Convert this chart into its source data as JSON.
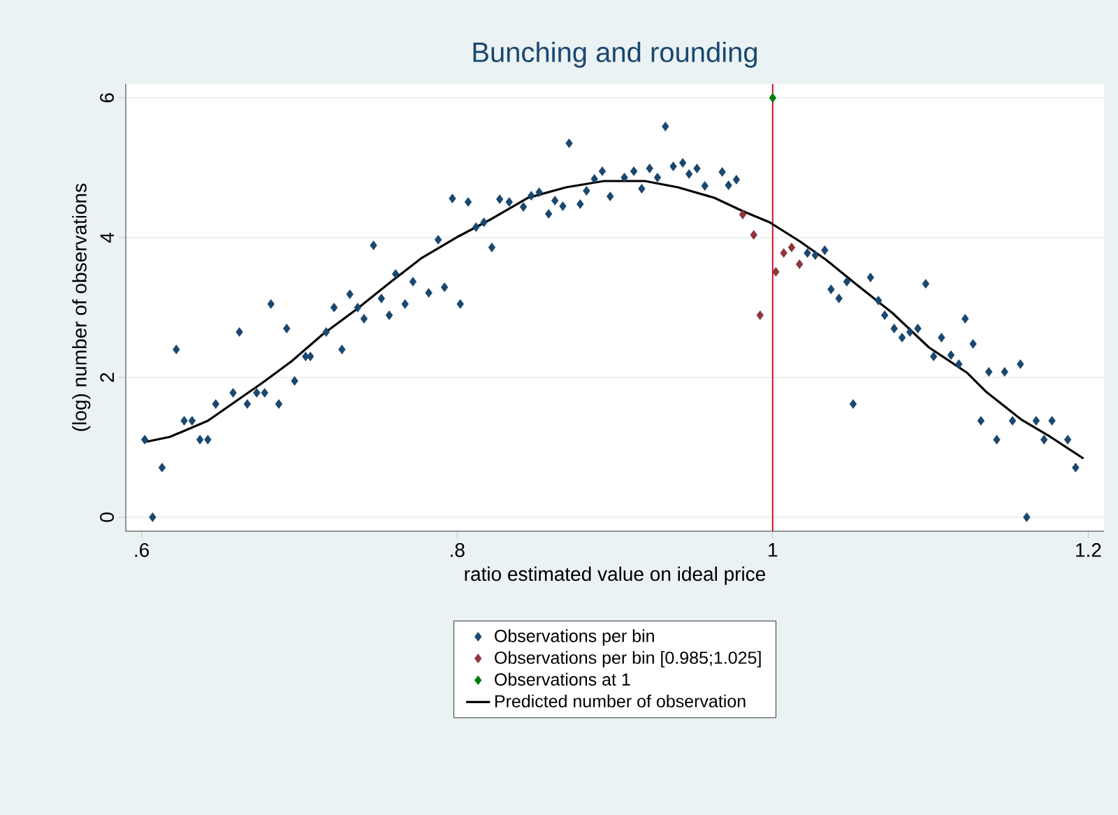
{
  "chart_data": {
    "type": "scatter",
    "title": "Bunching and rounding",
    "xlabel": "ratio estimated value on ideal price",
    "ylabel": "(log) number of observations",
    "xlim": [
      0.59,
      1.21
    ],
    "ylim": [
      -0.2,
      6.2
    ],
    "xticks": [
      {
        "value": 0.6,
        "label": ".6"
      },
      {
        "value": 0.8,
        "label": ".8"
      },
      {
        "value": 1,
        "label": "1"
      },
      {
        "value": 1.2,
        "label": "1.2"
      }
    ],
    "yticks": [
      0,
      2,
      4,
      6
    ],
    "grid": "y",
    "legend": "bottom",
    "ref_lines": [
      {
        "axis": "x",
        "value": 1,
        "color": "#c8102e"
      }
    ],
    "series": [
      {
        "name": "Observations per bin",
        "marker": "diamond",
        "color": "#1a476f",
        "x": [
          0.602,
          0.607,
          0.613,
          0.622,
          0.627,
          0.632,
          0.637,
          0.642,
          0.647,
          0.658,
          0.662,
          0.667,
          0.673,
          0.678,
          0.682,
          0.687,
          0.692,
          0.697,
          0.704,
          0.707,
          0.717,
          0.722,
          0.727,
          0.732,
          0.737,
          0.741,
          0.747,
          0.752,
          0.757,
          0.761,
          0.767,
          0.772,
          0.782,
          0.788,
          0.792,
          0.797,
          0.802,
          0.807,
          0.812,
          0.817,
          0.822,
          0.827,
          0.833,
          0.842,
          0.847,
          0.852,
          0.858,
          0.862,
          0.867,
          0.871,
          0.878,
          0.882,
          0.887,
          0.892,
          0.897,
          0.906,
          0.912,
          0.917,
          0.922,
          0.927,
          0.932,
          0.937,
          0.943,
          0.947,
          0.952,
          0.957,
          0.968,
          0.972,
          0.977,
          1.022,
          1.027,
          1.033,
          1.037,
          1.042,
          1.047,
          1.051,
          1.062,
          1.067,
          1.071,
          1.077,
          1.082,
          1.087,
          1.092,
          1.097,
          1.102,
          1.107,
          1.113,
          1.118,
          1.122,
          1.127,
          1.132,
          1.137,
          1.142,
          1.147,
          1.152,
          1.157,
          1.161,
          1.167,
          1.172,
          1.177,
          1.187,
          1.192
        ],
        "values": [
          1.11,
          0.0,
          0.71,
          2.4,
          1.38,
          1.38,
          1.11,
          1.11,
          1.62,
          1.78,
          2.65,
          1.62,
          1.78,
          1.78,
          3.05,
          1.62,
          2.7,
          1.95,
          2.3,
          2.3,
          2.65,
          3.0,
          2.4,
          3.19,
          3.0,
          2.84,
          3.89,
          3.13,
          2.89,
          3.48,
          3.05,
          3.37,
          3.21,
          3.97,
          3.29,
          4.56,
          3.05,
          4.51,
          4.15,
          4.22,
          3.86,
          4.55,
          4.51,
          4.44,
          4.6,
          4.65,
          4.34,
          4.53,
          4.45,
          5.35,
          4.48,
          4.67,
          4.84,
          4.95,
          4.59,
          4.86,
          4.95,
          4.7,
          4.99,
          4.86,
          5.59,
          5.02,
          5.07,
          4.91,
          4.99,
          4.74,
          4.94,
          4.75,
          4.83,
          3.78,
          3.75,
          3.82,
          3.26,
          3.13,
          3.37,
          1.62,
          3.43,
          3.1,
          2.89,
          2.7,
          2.57,
          2.65,
          2.7,
          3.34,
          2.3,
          2.57,
          2.32,
          2.19,
          2.84,
          2.48,
          1.38,
          2.08,
          1.11,
          2.08,
          1.38,
          2.19,
          0.0,
          1.38,
          1.11,
          1.38,
          1.11,
          0.71
        ]
      },
      {
        "name": "Observations per bin [0.985;1.025]",
        "marker": "diamond",
        "color": "#90353b",
        "x": [
          0.981,
          0.988,
          0.992,
          1.002,
          1.007,
          1.012,
          1.017
        ],
        "values": [
          4.33,
          4.04,
          2.89,
          3.51,
          3.78,
          3.86,
          3.62
        ]
      },
      {
        "name": "Observations at 1",
        "marker": "diamond",
        "color": "#008000",
        "x": [
          1.0
        ],
        "values": [
          6.0
        ]
      },
      {
        "name": "Predicted number of observation",
        "type": "line",
        "color": "#000000",
        "x": [
          0.603,
          0.618,
          0.642,
          0.677,
          0.695,
          0.715,
          0.736,
          0.757,
          0.777,
          0.801,
          0.822,
          0.845,
          0.869,
          0.893,
          0.919,
          0.94,
          0.963,
          0.981,
          0.998,
          1.017,
          1.034,
          1.052,
          1.076,
          1.099,
          1.123,
          1.135,
          1.158,
          1.176,
          1.197
        ],
        "values": [
          1.08,
          1.15,
          1.38,
          1.93,
          2.23,
          2.62,
          2.97,
          3.35,
          3.7,
          4.02,
          4.27,
          4.57,
          4.72,
          4.81,
          4.81,
          4.72,
          4.57,
          4.38,
          4.22,
          3.95,
          3.68,
          3.35,
          2.92,
          2.43,
          2.07,
          1.8,
          1.39,
          1.15,
          0.84
        ]
      }
    ]
  }
}
